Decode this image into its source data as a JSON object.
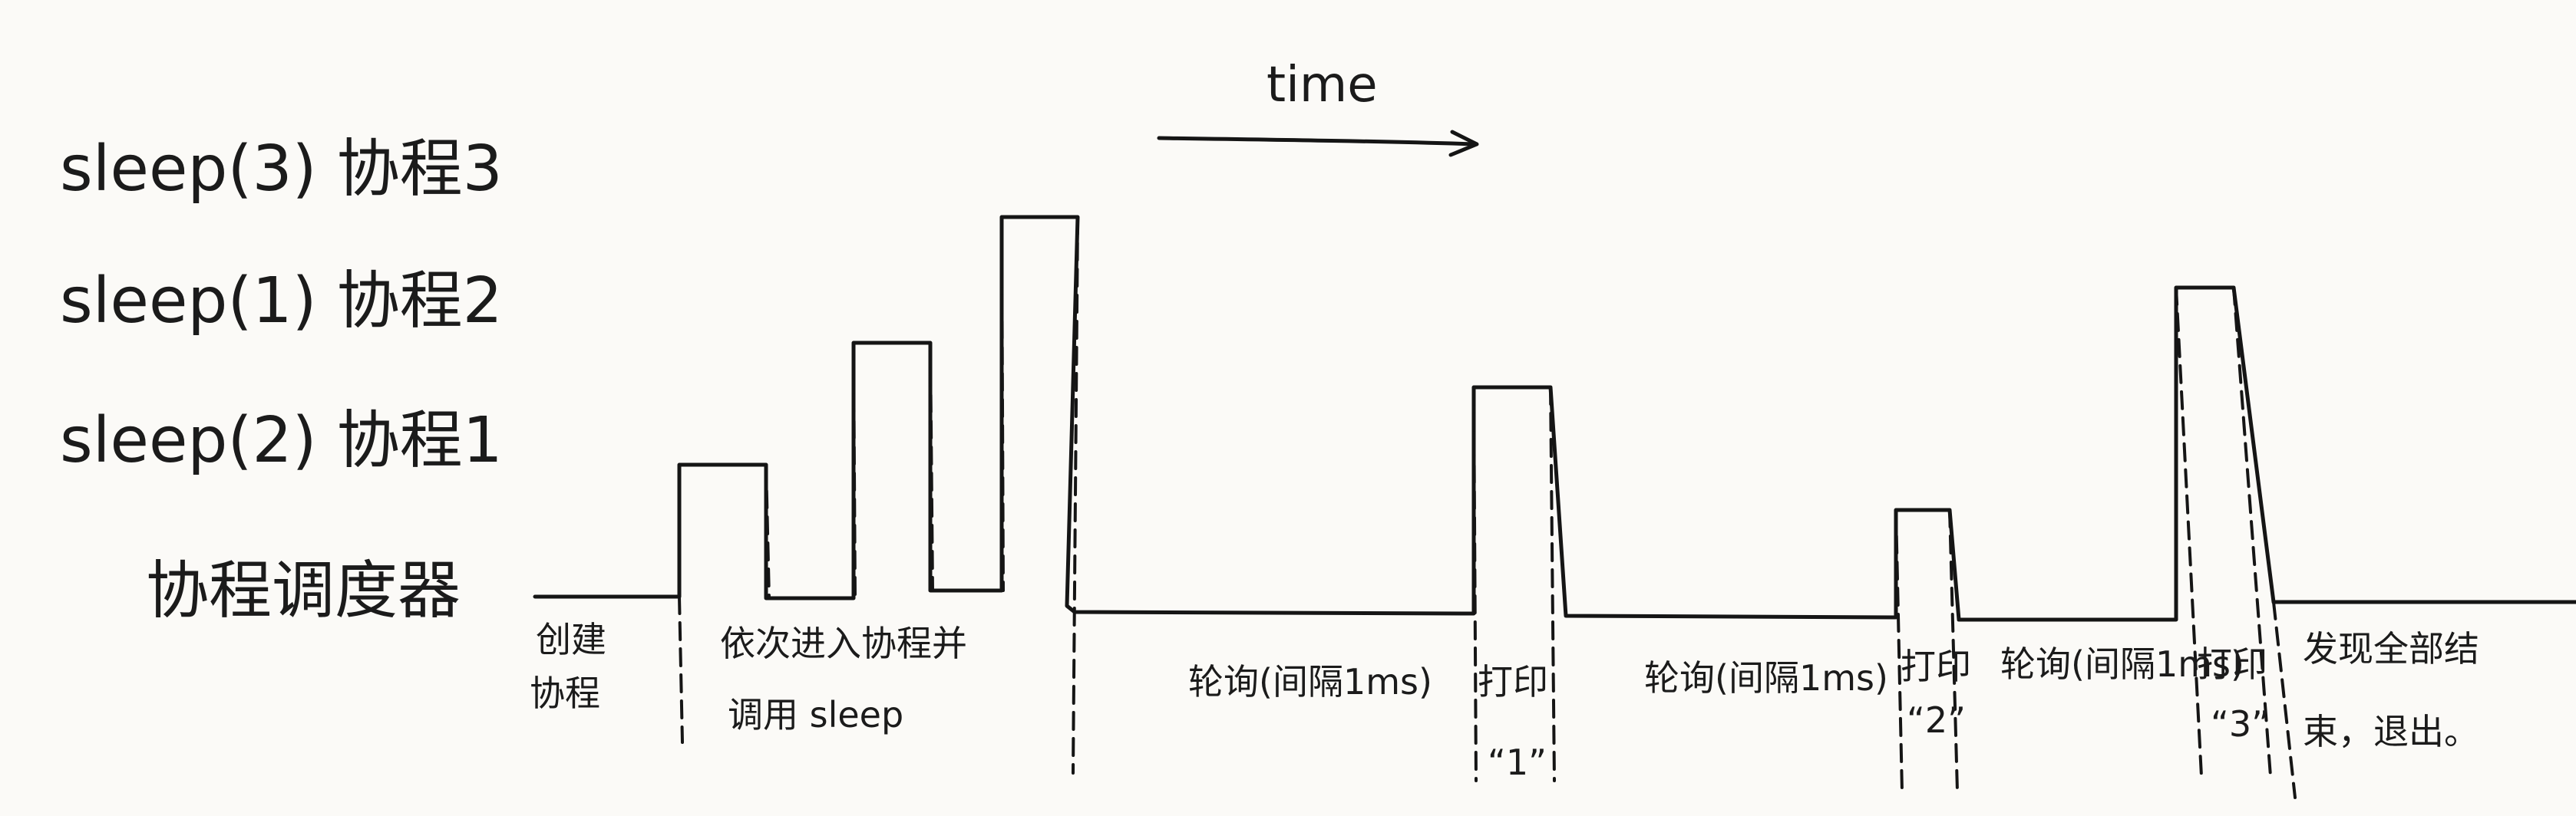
{
  "time_label": "time",
  "rows": [
    {
      "id": "coroutine-3",
      "label": "sleep(3) 协程3"
    },
    {
      "id": "coroutine-2",
      "label": "sleep(1) 协程2"
    },
    {
      "id": "coroutine-1",
      "label": "sleep(2) 协程1"
    },
    {
      "id": "scheduler",
      "label": "协程调度器"
    }
  ],
  "timeline_labels": {
    "create": [
      "创建",
      "协程"
    ],
    "enter": [
      "依次进入协程并",
      "调用 sleep"
    ],
    "poll_1": [
      "轮询(间隔1ms)"
    ],
    "print_1": [
      "打印",
      "“1”"
    ],
    "poll_2": [
      "轮询(间隔1ms)"
    ],
    "print_2": [
      "打印",
      "“2”"
    ],
    "poll_3": [
      "轮询(间隔1ms)"
    ],
    "print_3": [
      "打印",
      "“3”"
    ],
    "finish": [
      "发现全部结",
      "束，退出。"
    ]
  }
}
